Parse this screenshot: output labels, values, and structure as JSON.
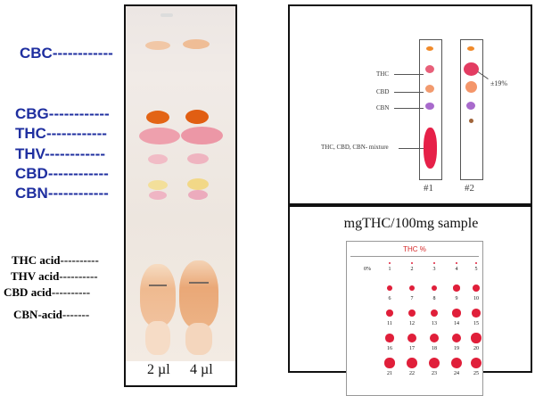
{
  "left_panel": {
    "compound_labels": [
      "CBC",
      "CBG",
      "THC",
      "THV",
      "CBD",
      "CBN"
    ],
    "acid_labels": [
      "THC acid",
      "THV acid",
      "CBD acid",
      "CBN-acid"
    ],
    "lane_labels": [
      "2 µl",
      "4 µl"
    ],
    "colors": {
      "label_blue": "#1f2fa0"
    }
  },
  "right_top": {
    "strip_labels": [
      "THC",
      "CBD",
      "CBN",
      "THC, CBD, CBN- mixture"
    ],
    "annotation": "±19%",
    "strip_numbers": [
      "#1",
      "#2"
    ]
  },
  "right_bottom": {
    "title": "mgTHC/100mg sample",
    "card_heading": "THC %",
    "grid_numbers": [
      "0%",
      "1",
      "2",
      "3",
      "4",
      "5",
      "6",
      "7",
      "8",
      "9",
      "10",
      "11",
      "12",
      "13",
      "14",
      "15",
      "16",
      "17",
      "18",
      "19",
      "20",
      "21",
      "22",
      "23",
      "24",
      "25"
    ],
    "colors": {
      "spot_red": "#e01f3a",
      "heading_red": "#d52828"
    }
  }
}
